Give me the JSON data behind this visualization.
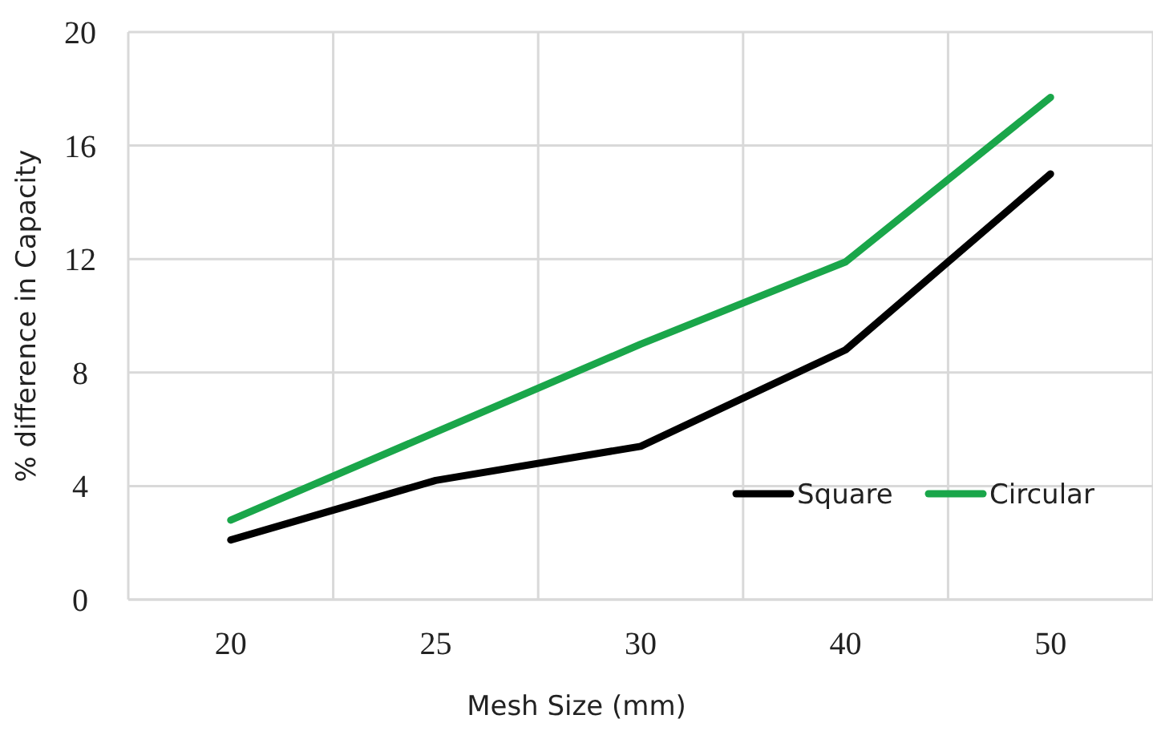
{
  "chart_data": {
    "type": "line",
    "xlabel": "Mesh Size (mm)",
    "ylabel": "% difference in Capacity",
    "categories": [
      "20",
      "25",
      "30",
      "40",
      "50"
    ],
    "series": [
      {
        "name": "Square",
        "color": "#000000",
        "values": [
          2.1,
          4.2,
          5.4,
          8.8,
          15.0
        ]
      },
      {
        "name": "Circular",
        "color": "#1aa64a",
        "values": [
          2.8,
          5.9,
          9.0,
          11.9,
          17.7
        ]
      }
    ],
    "ylim": [
      0,
      20
    ],
    "yticks": [
      0,
      4,
      8,
      12,
      16,
      20
    ],
    "grid": true,
    "legend": "bottom right",
    "marker": "none",
    "line_style": "solid"
  }
}
